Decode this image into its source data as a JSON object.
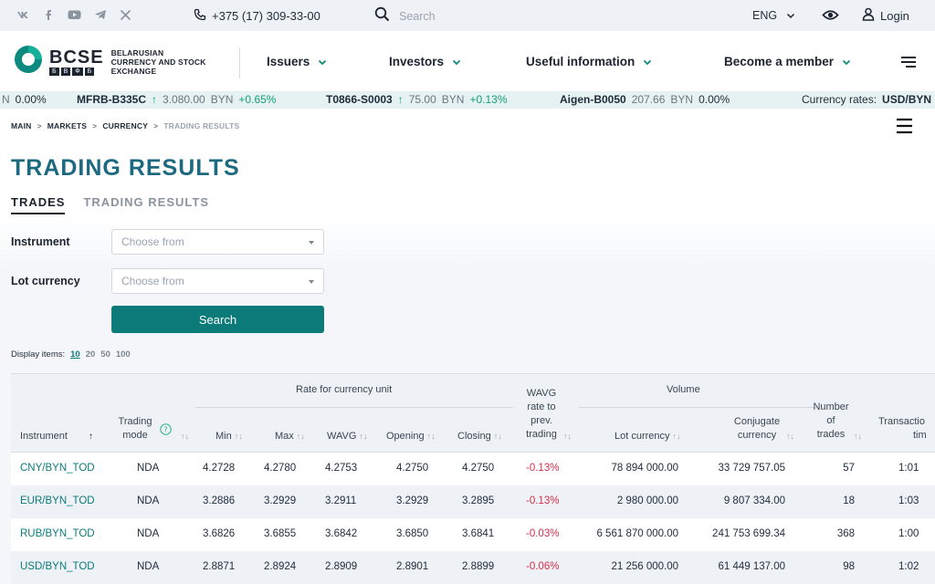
{
  "topbar": {
    "social_icons": [
      "vk-icon",
      "facebook-icon",
      "youtube-icon",
      "telegram-icon",
      "x-icon"
    ],
    "phone": "+375 (17) 309-33-00",
    "search_placeholder": "Search",
    "language": "ENG",
    "login_label": "Login"
  },
  "header": {
    "logo_main": "BCSE",
    "logo_letters": [
      "Б",
      "В",
      "Ф",
      "Б"
    ],
    "logo_line1": "BELARUSIAN",
    "logo_line2": "CURRENCY AND STOCK",
    "logo_line3": "EXCHANGE",
    "nav": [
      "Issuers",
      "Investors",
      "Useful information",
      "Become a member"
    ]
  },
  "ticker": {
    "lead_value": "0.00%",
    "items": [
      {
        "name": "MFRB-B335C",
        "price": "3.080.00",
        "currency": "BYN",
        "change": "+0.65%",
        "direction": "up"
      },
      {
        "name": "T0866-S0003",
        "price": "75.00",
        "currency": "BYN",
        "change": "+0.13%",
        "direction": "up"
      },
      {
        "name": "Aigen-B0050",
        "price": "207.66",
        "currency": "BYN",
        "change": "0.00%",
        "direction": "flat"
      }
    ],
    "rates_label": "Currency rates:",
    "rates_pair": "USD/BYN"
  },
  "breadcrumb": [
    "MAIN",
    "MARKETS",
    "CURRENCY",
    "TRADING RESULTS"
  ],
  "page_title": "TRADING RESULTS",
  "tabs": [
    {
      "label": "TRADES",
      "active": true
    },
    {
      "label": "TRADING RESULTS",
      "active": false
    }
  ],
  "filters": {
    "instrument_label": "Instrument",
    "instrument_placeholder": "Choose from",
    "lot_currency_label": "Lot currency",
    "lot_currency_placeholder": "Choose from",
    "search_button": "Search"
  },
  "display": {
    "label": "Display items:",
    "options": [
      "10",
      "20",
      "50",
      "100"
    ],
    "selected": "10"
  },
  "table": {
    "group_rate": "Rate for currency unit",
    "group_volume": "Volume",
    "headers": {
      "instrument": "Instrument",
      "trading_mode_1": "Trading",
      "trading_mode_2": "mode",
      "min": "Min",
      "max": "Max",
      "wavg": "WAVG",
      "opening": "Opening",
      "closing": "Closing",
      "wavg_prev_1": "WAVG",
      "wavg_prev_2": "rate to",
      "wavg_prev_3": "prev.",
      "wavg_prev_4": "trading",
      "lot_currency": "Lot currency",
      "conj_1": "Conjugate",
      "conj_2": "currency",
      "trades_1": "Number",
      "trades_2": "of",
      "trades_3": "trades",
      "trans_1": "Transactio",
      "trans_2": "tim"
    },
    "rows": [
      {
        "instrument": "CNY/BYN_TOD",
        "mode": "NDA",
        "min": "4.2728",
        "max": "4.2780",
        "wavg": "4.2753",
        "opening": "4.2750",
        "closing": "4.2750",
        "change": "-0.13%",
        "lot": "78 894 000.00",
        "conj": "33 729 757.05",
        "trades": "57",
        "time": "1:01"
      },
      {
        "instrument": "EUR/BYN_TOD",
        "mode": "NDA",
        "min": "3.2886",
        "max": "3.2929",
        "wavg": "3.2911",
        "opening": "3.2929",
        "closing": "3.2895",
        "change": "-0.13%",
        "lot": "2 980 000.00",
        "conj": "9 807 334.00",
        "trades": "18",
        "time": "1:03"
      },
      {
        "instrument": "RUB/BYN_TOD",
        "mode": "NDA",
        "min": "3.6826",
        "max": "3.6855",
        "wavg": "3.6842",
        "opening": "3.6850",
        "closing": "3.6841",
        "change": "-0.03%",
        "lot": "6 561 870 000.00",
        "conj": "241 753 699.34",
        "trades": "368",
        "time": "1:00"
      },
      {
        "instrument": "USD/BYN_TOD",
        "mode": "NDA",
        "min": "2.8871",
        "max": "2.8924",
        "wavg": "2.8909",
        "opening": "2.8901",
        "closing": "2.8899",
        "change": "-0.06%",
        "lot": "21 256 000.00",
        "conj": "61 449 137.00",
        "trades": "98",
        "time": "1:02"
      }
    ]
  },
  "colors": {
    "accent": "#0d7a7a",
    "title": "#1d6a80",
    "negative": "#d0304a",
    "positive": "#10a07a"
  }
}
